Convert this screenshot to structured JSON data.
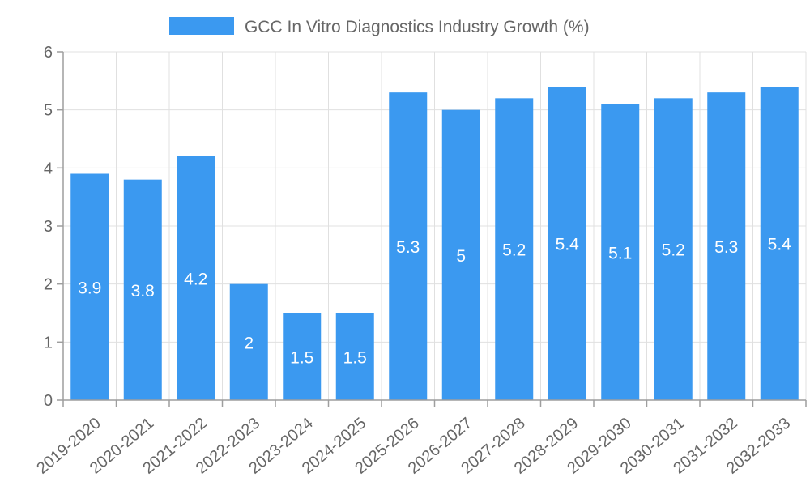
{
  "chart_data": {
    "type": "bar",
    "title": "",
    "legend": {
      "label": "GCC In Vitro Diagnostics Industry Growth (%)",
      "position": "top"
    },
    "categories": [
      "2019-2020",
      "2020-2021",
      "2021-2022",
      "2022-2023",
      "2023-2024",
      "2024-2025",
      "2025-2026",
      "2026-2027",
      "2027-2028",
      "2028-2029",
      "2029-2030",
      "2030-2031",
      "2031-2032",
      "2032-2033"
    ],
    "series": [
      {
        "name": "GCC In Vitro Diagnostics Industry Growth (%)",
        "values": [
          3.9,
          3.8,
          4.2,
          2,
          1.5,
          1.5,
          5.3,
          5,
          5.2,
          5.4,
          5.1,
          5.2,
          5.3,
          5.4
        ]
      }
    ],
    "data_labels": [
      "3.9",
      "3.8",
      "4.2",
      "2",
      "1.5",
      "1.5",
      "5.3",
      "5",
      "5.2",
      "5.4",
      "5.1",
      "5.2",
      "5.3",
      "5.4"
    ],
    "y_ticks": [
      "0",
      "1",
      "2",
      "3",
      "4",
      "5",
      "6"
    ],
    "xlabel": "",
    "ylabel": "",
    "ylim": [
      0,
      6
    ],
    "grid": true,
    "colors": {
      "bar": "#3b99f0",
      "grid": "#e0e0e0",
      "axis": "#9e9e9e",
      "text": "#666666",
      "label": "#ffffff"
    }
  }
}
